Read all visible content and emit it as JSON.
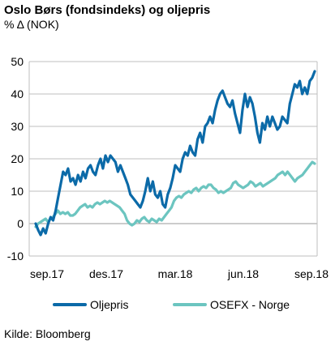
{
  "title": "Oslo Børs (fondsindeks) og oljepris",
  "subtitle": "% Δ (NOK)",
  "source": "Kilde: Bloomberg",
  "chart_data": {
    "type": "line",
    "ylim": [
      -10,
      50
    ],
    "y_ticks": [
      -10,
      0,
      10,
      20,
      30,
      40,
      50
    ],
    "x_tick_labels": [
      "sep.17",
      "des.17",
      "mar.18",
      "jun.18",
      "sep.18"
    ],
    "grid": true,
    "legend_position": "bottom",
    "series": [
      {
        "name": "Oljepris",
        "color": "#0b6aa8",
        "values": [
          0,
          -2,
          -3.5,
          -1.5,
          -3,
          0,
          2,
          1,
          4,
          8,
          12,
          16,
          15,
          17,
          13,
          14,
          12,
          15,
          13,
          16,
          14,
          17,
          18,
          16,
          15,
          18,
          20,
          17,
          21,
          19,
          21,
          20,
          19,
          16,
          18,
          16,
          14,
          12,
          9,
          8,
          7,
          6,
          5,
          7,
          10,
          14,
          10,
          13,
          9,
          8,
          10,
          6,
          5,
          9,
          11,
          14,
          18,
          17,
          16,
          20,
          22,
          21,
          24,
          22,
          21,
          26,
          28,
          25,
          30,
          31,
          33,
          31,
          35,
          38,
          40,
          41,
          39,
          37,
          36,
          38,
          34,
          31,
          28,
          35,
          40,
          36,
          39,
          37,
          33,
          28,
          25,
          31,
          29,
          33,
          30,
          33,
          31,
          29,
          30,
          33,
          32,
          31,
          37,
          40,
          43,
          42,
          44,
          40,
          42,
          40,
          44,
          45,
          47
        ]
      },
      {
        "name": "OSEFX - Norge",
        "color": "#6cc5c0",
        "values": [
          -1,
          0,
          0.5,
          1,
          1.5,
          0.5,
          1.5,
          2,
          3,
          4,
          3,
          3.5,
          3,
          3.5,
          2.5,
          2.5,
          3,
          4,
          5,
          5.5,
          6,
          5,
          5.5,
          5,
          6,
          6.5,
          6,
          6.5,
          7,
          6.5,
          7,
          6.5,
          6,
          5.5,
          5,
          4,
          3,
          1,
          0,
          -0.5,
          0,
          1,
          0.5,
          1.5,
          2,
          1,
          0.5,
          1.5,
          1,
          0.5,
          1.5,
          1,
          2,
          3,
          4,
          5,
          7,
          8,
          8.5,
          8,
          9,
          9.5,
          10,
          9.5,
          10.5,
          11,
          10,
          11,
          11.5,
          11,
          12,
          12,
          11,
          10.5,
          9.5,
          10,
          9.5,
          10,
          10.5,
          11,
          12.5,
          13,
          12,
          11.5,
          11,
          11.5,
          12,
          13,
          12.5,
          11.5,
          12,
          12.5,
          11.5,
          12,
          12.5,
          13,
          13.5,
          14,
          15,
          15.5,
          16,
          15,
          16,
          15,
          14,
          13,
          14,
          14.5,
          15,
          16,
          17,
          18,
          19,
          18.5
        ]
      }
    ]
  }
}
